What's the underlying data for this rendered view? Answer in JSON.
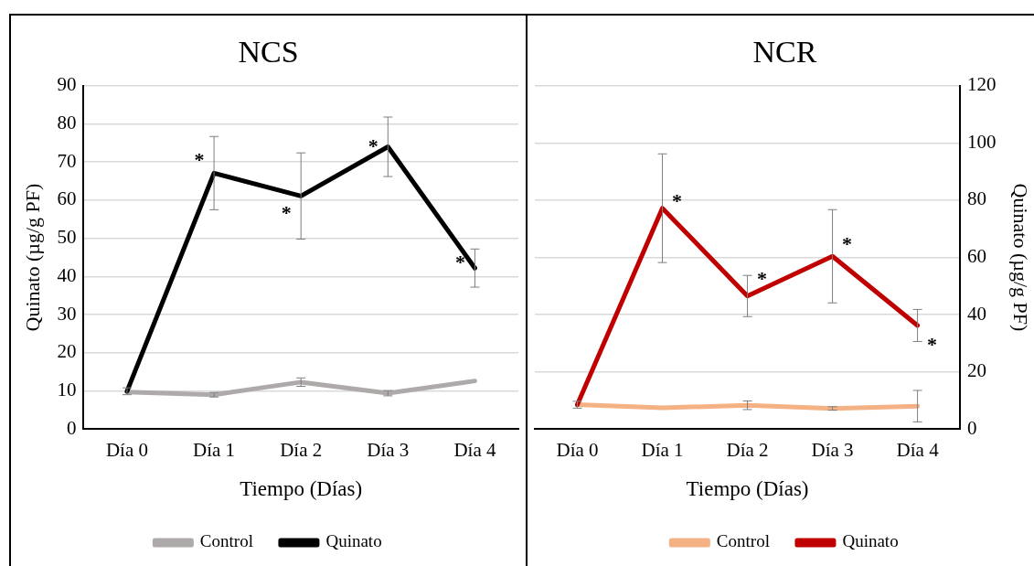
{
  "chart_data": [
    {
      "type": "line",
      "title": "NCS",
      "xlabel": "Tiempo (Días)",
      "ylabel": "Quinato (µg/g PF)",
      "categories": [
        "Día 0",
        "Día 1",
        "Día 2",
        "Día 3",
        "Día 4"
      ],
      "series": [
        {
          "name": "Control",
          "color": "#aeaaaa",
          "values": [
            9.7,
            9.0,
            12.3,
            9.4,
            12.6
          ],
          "errors": [
            null,
            0.6,
            1.1,
            0.7,
            null
          ]
        },
        {
          "name": "Quinato",
          "color": "#000000",
          "values": [
            9.9,
            67.1,
            61.1,
            74.0,
            42.2
          ],
          "errors": [
            0.9,
            9.6,
            11.3,
            7.8,
            5.0
          ]
        }
      ],
      "ylim": [
        0,
        90
      ],
      "yticks": [
        0,
        10,
        20,
        30,
        40,
        50,
        60,
        70,
        80,
        90
      ],
      "grid": "y",
      "legend": "bottom",
      "annotations": [
        {
          "text": "*",
          "x": "Día 1",
          "y": 71.5
        },
        {
          "text": "*",
          "x": "Día 2",
          "y": 57.4
        },
        {
          "text": "*",
          "x": "Día 3",
          "y": 75
        },
        {
          "text": "*",
          "x": "Día 4",
          "y": 44.5
        }
      ]
    },
    {
      "type": "line",
      "title": "NCR",
      "xlabel": "Tiempo (Días)",
      "ylabel": "Quinato (µg/g PF)",
      "categories": [
        "Día 0",
        "Día 1",
        "Día 2",
        "Día 3",
        "Día 4"
      ],
      "series": [
        {
          "name": "Control",
          "color": "#f4b183",
          "values": [
            8.5,
            7.4,
            8.3,
            7.2,
            8.0
          ],
          "errors": [
            null,
            null,
            1.5,
            0.6,
            5.5
          ]
        },
        {
          "name": "Quinato",
          "color": "#c00000",
          "values": [
            8.5,
            77.2,
            46.5,
            60.4,
            36.2
          ],
          "errors": [
            1.2,
            19.0,
            7.2,
            16.3,
            5.6
          ]
        }
      ],
      "ylim": [
        0,
        120
      ],
      "yticks": [
        0,
        20,
        40,
        60,
        80,
        100,
        120
      ],
      "grid": "y",
      "legend": "bottom",
      "annotations": [
        {
          "text": "*",
          "x": "Día 1",
          "y": 80.9
        },
        {
          "text": "*",
          "x": "Día 2",
          "y": 53.7
        },
        {
          "text": "*",
          "x": "Día 3",
          "y": 65.8
        },
        {
          "text": "*",
          "x": "Día 4",
          "y": 30.6
        }
      ]
    }
  ]
}
